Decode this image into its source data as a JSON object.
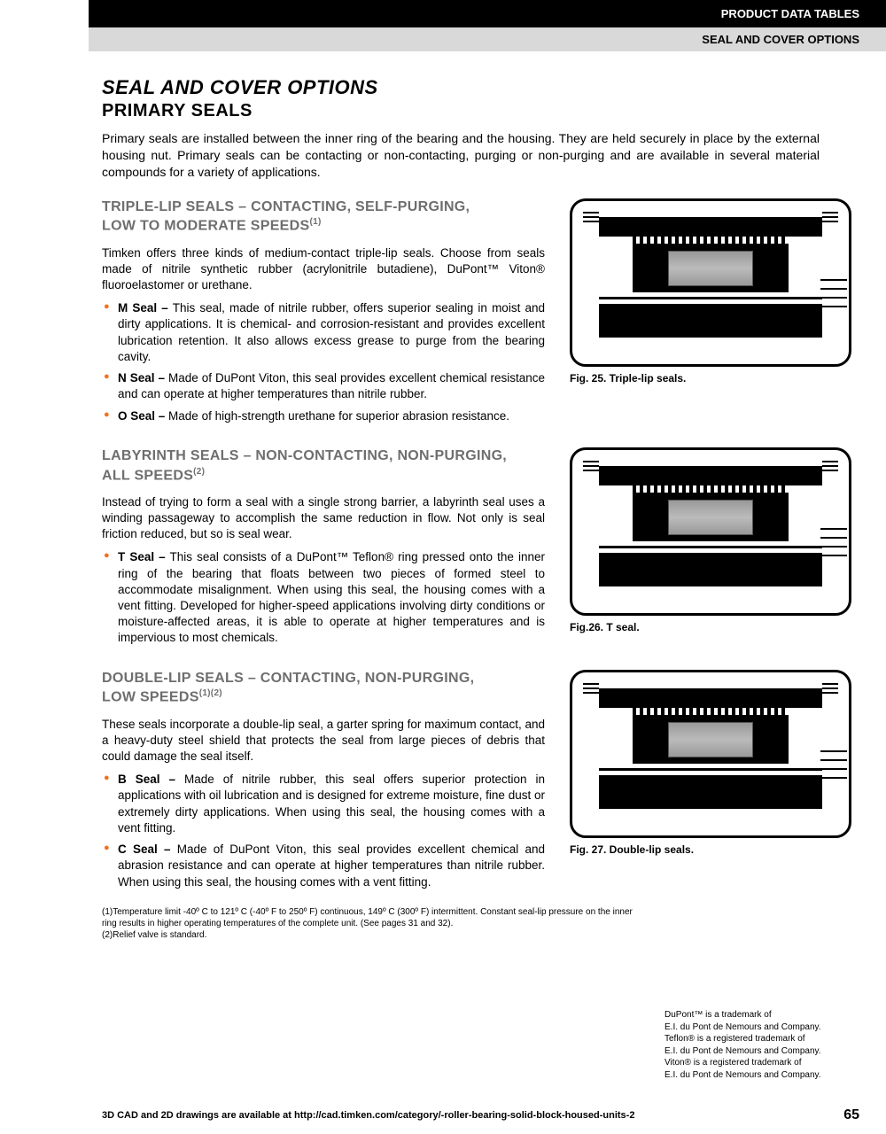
{
  "header": {
    "top": "PRODUCT DATA TABLES",
    "sub": "SEAL AND COVER OPTIONS"
  },
  "title": "SEAL AND COVER OPTIONS",
  "subtitle": "PRIMARY SEALS",
  "intro": "Primary seals are installed between the inner ring of the bearing and the housing. They are held securely in place by the external housing nut. Primary seals can be contacting or non-contacting, purging or non-purging and are available in several material compounds for a variety of applications.",
  "sections": [
    {
      "heading_l1": "TRIPLE-LIP SEALS – CONTACTING, SELF-PURGING,",
      "heading_l2": "LOW TO MODERATE SPEEDS",
      "sup": "(1)",
      "body": "Timken offers three kinds of medium-contact triple-lip seals. Choose from seals made of nitrile synthetic rubber (acrylonitrile butadiene), DuPont™ Viton® fluoroelastomer or urethane.",
      "bullets": [
        {
          "label": "M Seal –",
          "text": " This seal, made of nitrile rubber, offers superior sealing in moist and dirty applications. It is chemical- and corrosion-resistant and provides excellent lubrication retention. It also allows excess grease to purge from the bearing cavity."
        },
        {
          "label": "N Seal –",
          "text": " Made of DuPont Viton, this seal provides excellent chemical resistance and can operate at higher temperatures than nitrile rubber."
        },
        {
          "label": "O Seal –",
          "text": " Made of high-strength urethane for superior abrasion resistance."
        }
      ],
      "figcap": "Fig. 25. Triple-lip seals."
    },
    {
      "heading_l1": "LABYRINTH SEALS – NON-CONTACTING, NON-PURGING,",
      "heading_l2": "ALL SPEEDS",
      "sup": "(2)",
      "body": "Instead of trying to form a seal with a single strong barrier, a labyrinth seal uses a winding passageway to accomplish the same reduction in flow. Not only is seal friction reduced, but so is seal wear.",
      "bullets": [
        {
          "label": "T Seal –",
          "text": " This seal consists of a DuPont™ Teflon® ring pressed onto the inner ring of the bearing that floats between two pieces of formed steel to accommodate misalignment. When using this seal, the housing comes with a vent fitting. Developed for higher-speed applications involving dirty conditions or moisture-affected areas, it is able to operate at higher temperatures and is impervious to most chemicals."
        }
      ],
      "figcap": "Fig.26. T seal."
    },
    {
      "heading_l1": "DOUBLE-LIP SEALS – CONTACTING, NON-PURGING,",
      "heading_l2": "LOW SPEEDS",
      "sup": "(1)(2)",
      "body": "These seals incorporate a double-lip seal, a garter spring for maximum contact, and a heavy-duty steel shield that protects the seal from large pieces of debris that could damage the seal itself.",
      "bullets": [
        {
          "label": "B Seal –",
          "text": " Made of nitrile rubber, this seal offers superior protection in applications with oil lubrication and is designed for extreme moisture, fine dust or extremely dirty applications. When using this seal, the housing comes with a vent fitting."
        },
        {
          "label": "C Seal –",
          "text": " Made of DuPont Viton, this seal provides excellent chemical and abrasion resistance and can operate at higher temperatures than nitrile rubber. When using this seal, the housing comes with a vent fitting."
        }
      ],
      "figcap": "Fig. 27. Double-lip seals."
    }
  ],
  "footnotes": {
    "n1": "(1)Temperature limit -40º C to 121º C (-40º F to 250º F) continuous, 149º C (300º F) intermittent. Constant seal-lip pressure on the inner ring results in higher operating temperatures of the complete unit. (See pages 31 and 32).",
    "n2": "(2)Relief valve is standard."
  },
  "trademark": "DuPont™ is a trademark of\nE.I. du Pont de Nemours and Company.\nTeflon® is a registered trademark of\nE.I. du Pont de Nemours and Company.\nViton® is a registered trademark of\nE.I. du Pont de Nemours and Company.",
  "footer": {
    "text": "3D CAD and 2D drawings are available at http://cad.timken.com/category/-roller-bearing-solid-block-housed-units-2",
    "page": "65"
  }
}
